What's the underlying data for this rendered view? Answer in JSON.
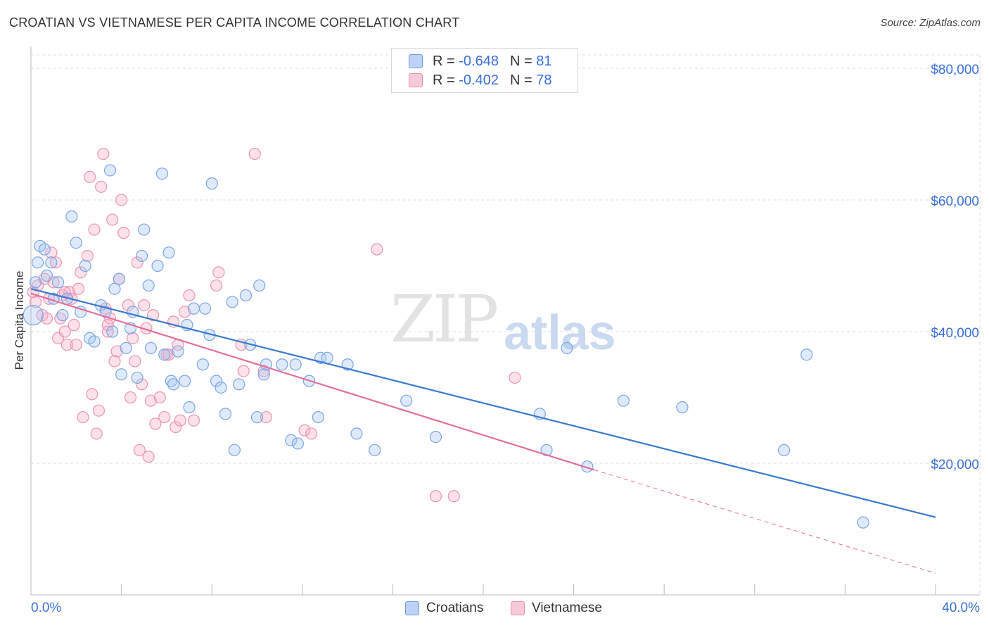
{
  "title": "CROATIAN VS VIETNAMESE PER CAPITA INCOME CORRELATION CHART",
  "source": "Source: ZipAtlas.com",
  "watermark": {
    "zip": "ZIP",
    "atlas": "atlas"
  },
  "colors": {
    "croatians": "#3a78d0",
    "vietnamese": "#e26f9a",
    "axis_label": "#3a6fd8"
  },
  "legend": {
    "croatians": {
      "r_label": "R = ",
      "r_value": "-0.648",
      "n_label": "N = ",
      "n_value": "81"
    },
    "vietnamese": {
      "r_label": "R = ",
      "r_value": "-0.402",
      "n_label": "N = ",
      "n_value": "78"
    }
  },
  "bottom_legend": {
    "croatians": "Croatians",
    "vietnamese": "Vietnamese"
  },
  "chart_data": {
    "type": "scatter",
    "title": "CROATIAN VS VIETNAMESE PER CAPITA INCOME CORRELATION CHART",
    "xlabel": "",
    "ylabel": "Per Capita Income",
    "xlim": [
      0,
      42
    ],
    "ylim": [
      0,
      82000
    ],
    "x_tick_labels": [
      "0.0%",
      "40.0%"
    ],
    "y_ticks": [
      20000,
      40000,
      60000,
      80000
    ],
    "y_tick_labels": [
      "$20,000",
      "$40,000",
      "$60,000",
      "$80,000"
    ],
    "grid": true,
    "series": [
      {
        "name": "Croatians",
        "r": -0.648,
        "n": 81,
        "trend": {
          "x": [
            0,
            40
          ],
          "y": [
            46500,
            11800
          ]
        },
        "points": [
          [
            0.1,
            42500
          ],
          [
            0.3,
            50500
          ],
          [
            0.4,
            53000
          ],
          [
            0.6,
            52500
          ],
          [
            0.7,
            48500
          ],
          [
            0.9,
            50500
          ],
          [
            1.0,
            45000
          ],
          [
            1.2,
            47500
          ],
          [
            1.4,
            42500
          ],
          [
            1.6,
            45000
          ],
          [
            1.8,
            57500
          ],
          [
            2.0,
            53500
          ],
          [
            2.2,
            43000
          ],
          [
            2.4,
            50000
          ],
          [
            2.6,
            39000
          ],
          [
            2.8,
            38500
          ],
          [
            3.1,
            44000
          ],
          [
            3.3,
            43000
          ],
          [
            3.5,
            64500
          ],
          [
            3.6,
            40000
          ],
          [
            3.7,
            46500
          ],
          [
            3.9,
            48000
          ],
          [
            4.0,
            33500
          ],
          [
            4.2,
            37500
          ],
          [
            4.4,
            40500
          ],
          [
            4.5,
            43000
          ],
          [
            4.7,
            33000
          ],
          [
            4.9,
            51500
          ],
          [
            5.0,
            55500
          ],
          [
            5.2,
            47000
          ],
          [
            5.3,
            37500
          ],
          [
            5.6,
            50000
          ],
          [
            5.8,
            64000
          ],
          [
            5.9,
            36500
          ],
          [
            6.1,
            52000
          ],
          [
            6.2,
            32500
          ],
          [
            6.3,
            32000
          ],
          [
            6.5,
            37000
          ],
          [
            6.8,
            32500
          ],
          [
            6.9,
            41000
          ],
          [
            7.0,
            28500
          ],
          [
            7.2,
            43500
          ],
          [
            7.6,
            35000
          ],
          [
            7.7,
            43500
          ],
          [
            7.9,
            39500
          ],
          [
            8.0,
            62500
          ],
          [
            8.2,
            32500
          ],
          [
            8.4,
            31500
          ],
          [
            8.6,
            27500
          ],
          [
            8.9,
            44500
          ],
          [
            9.0,
            22000
          ],
          [
            9.2,
            32000
          ],
          [
            9.5,
            45500
          ],
          [
            9.7,
            38000
          ],
          [
            10.0,
            27000
          ],
          [
            10.1,
            47000
          ],
          [
            10.3,
            33500
          ],
          [
            10.4,
            35000
          ],
          [
            11.1,
            35000
          ],
          [
            11.5,
            23500
          ],
          [
            11.7,
            35000
          ],
          [
            11.8,
            23000
          ],
          [
            12.3,
            32500
          ],
          [
            12.7,
            27000
          ],
          [
            12.8,
            36000
          ],
          [
            13.1,
            36000
          ],
          [
            14.0,
            35000
          ],
          [
            14.4,
            24500
          ],
          [
            15.2,
            22000
          ],
          [
            16.6,
            29500
          ],
          [
            17.9,
            24000
          ],
          [
            22.5,
            27500
          ],
          [
            22.8,
            22000
          ],
          [
            23.7,
            37500
          ],
          [
            24.6,
            19500
          ],
          [
            26.2,
            29500
          ],
          [
            28.8,
            28500
          ],
          [
            33.3,
            22000
          ],
          [
            34.3,
            36500
          ],
          [
            36.8,
            11000
          ],
          [
            0.2,
            47500
          ]
        ]
      },
      {
        "name": "Vietnamese",
        "r": -0.402,
        "n": 78,
        "trend": {
          "x": [
            0,
            24.9
          ],
          "y": [
            45800,
            19000
          ]
        },
        "trend_dashed": {
          "x": [
            24.9,
            40
          ],
          "y": [
            19000,
            3300
          ]
        },
        "points": [
          [
            0.1,
            46000
          ],
          [
            0.2,
            44500
          ],
          [
            0.3,
            47000
          ],
          [
            0.5,
            42500
          ],
          [
            0.6,
            48000
          ],
          [
            0.7,
            42000
          ],
          [
            0.8,
            45000
          ],
          [
            0.9,
            52000
          ],
          [
            1.0,
            47500
          ],
          [
            1.1,
            50500
          ],
          [
            1.2,
            39000
          ],
          [
            1.3,
            42000
          ],
          [
            1.4,
            45500
          ],
          [
            1.5,
            40000
          ],
          [
            1.6,
            38000
          ],
          [
            1.7,
            46000
          ],
          [
            1.8,
            45000
          ],
          [
            1.9,
            41000
          ],
          [
            2.0,
            38000
          ],
          [
            2.1,
            46500
          ],
          [
            2.2,
            49000
          ],
          [
            2.3,
            27000
          ],
          [
            2.5,
            51500
          ],
          [
            2.6,
            63500
          ],
          [
            2.7,
            30500
          ],
          [
            2.8,
            55500
          ],
          [
            2.9,
            24500
          ],
          [
            3.0,
            28000
          ],
          [
            3.1,
            62000
          ],
          [
            3.2,
            67000
          ],
          [
            3.3,
            43500
          ],
          [
            3.4,
            40000
          ],
          [
            3.5,
            42000
          ],
          [
            3.6,
            57000
          ],
          [
            3.7,
            35500
          ],
          [
            3.8,
            37000
          ],
          [
            3.9,
            48000
          ],
          [
            4.0,
            60000
          ],
          [
            4.1,
            55000
          ],
          [
            4.3,
            44000
          ],
          [
            4.4,
            30000
          ],
          [
            4.5,
            39000
          ],
          [
            4.6,
            35500
          ],
          [
            4.7,
            50500
          ],
          [
            4.8,
            22000
          ],
          [
            4.9,
            32000
          ],
          [
            5.1,
            40500
          ],
          [
            5.2,
            21000
          ],
          [
            5.3,
            29500
          ],
          [
            5.4,
            42500
          ],
          [
            5.5,
            26000
          ],
          [
            5.7,
            30000
          ],
          [
            5.9,
            27000
          ],
          [
            6.0,
            36500
          ],
          [
            6.1,
            36500
          ],
          [
            6.3,
            41500
          ],
          [
            6.4,
            25500
          ],
          [
            6.5,
            38000
          ],
          [
            6.6,
            26500
          ],
          [
            6.8,
            43000
          ],
          [
            7.0,
            45500
          ],
          [
            7.2,
            26500
          ],
          [
            8.2,
            47000
          ],
          [
            8.3,
            49000
          ],
          [
            9.3,
            38000
          ],
          [
            9.4,
            34000
          ],
          [
            9.9,
            67000
          ],
          [
            10.3,
            34000
          ],
          [
            10.4,
            27000
          ],
          [
            12.1,
            25000
          ],
          [
            12.4,
            24500
          ],
          [
            15.3,
            52500
          ],
          [
            17.9,
            15000
          ],
          [
            18.7,
            15000
          ],
          [
            21.4,
            33000
          ],
          [
            1.5,
            46000
          ],
          [
            3.4,
            41000
          ],
          [
            5.0,
            44000
          ]
        ]
      }
    ]
  }
}
